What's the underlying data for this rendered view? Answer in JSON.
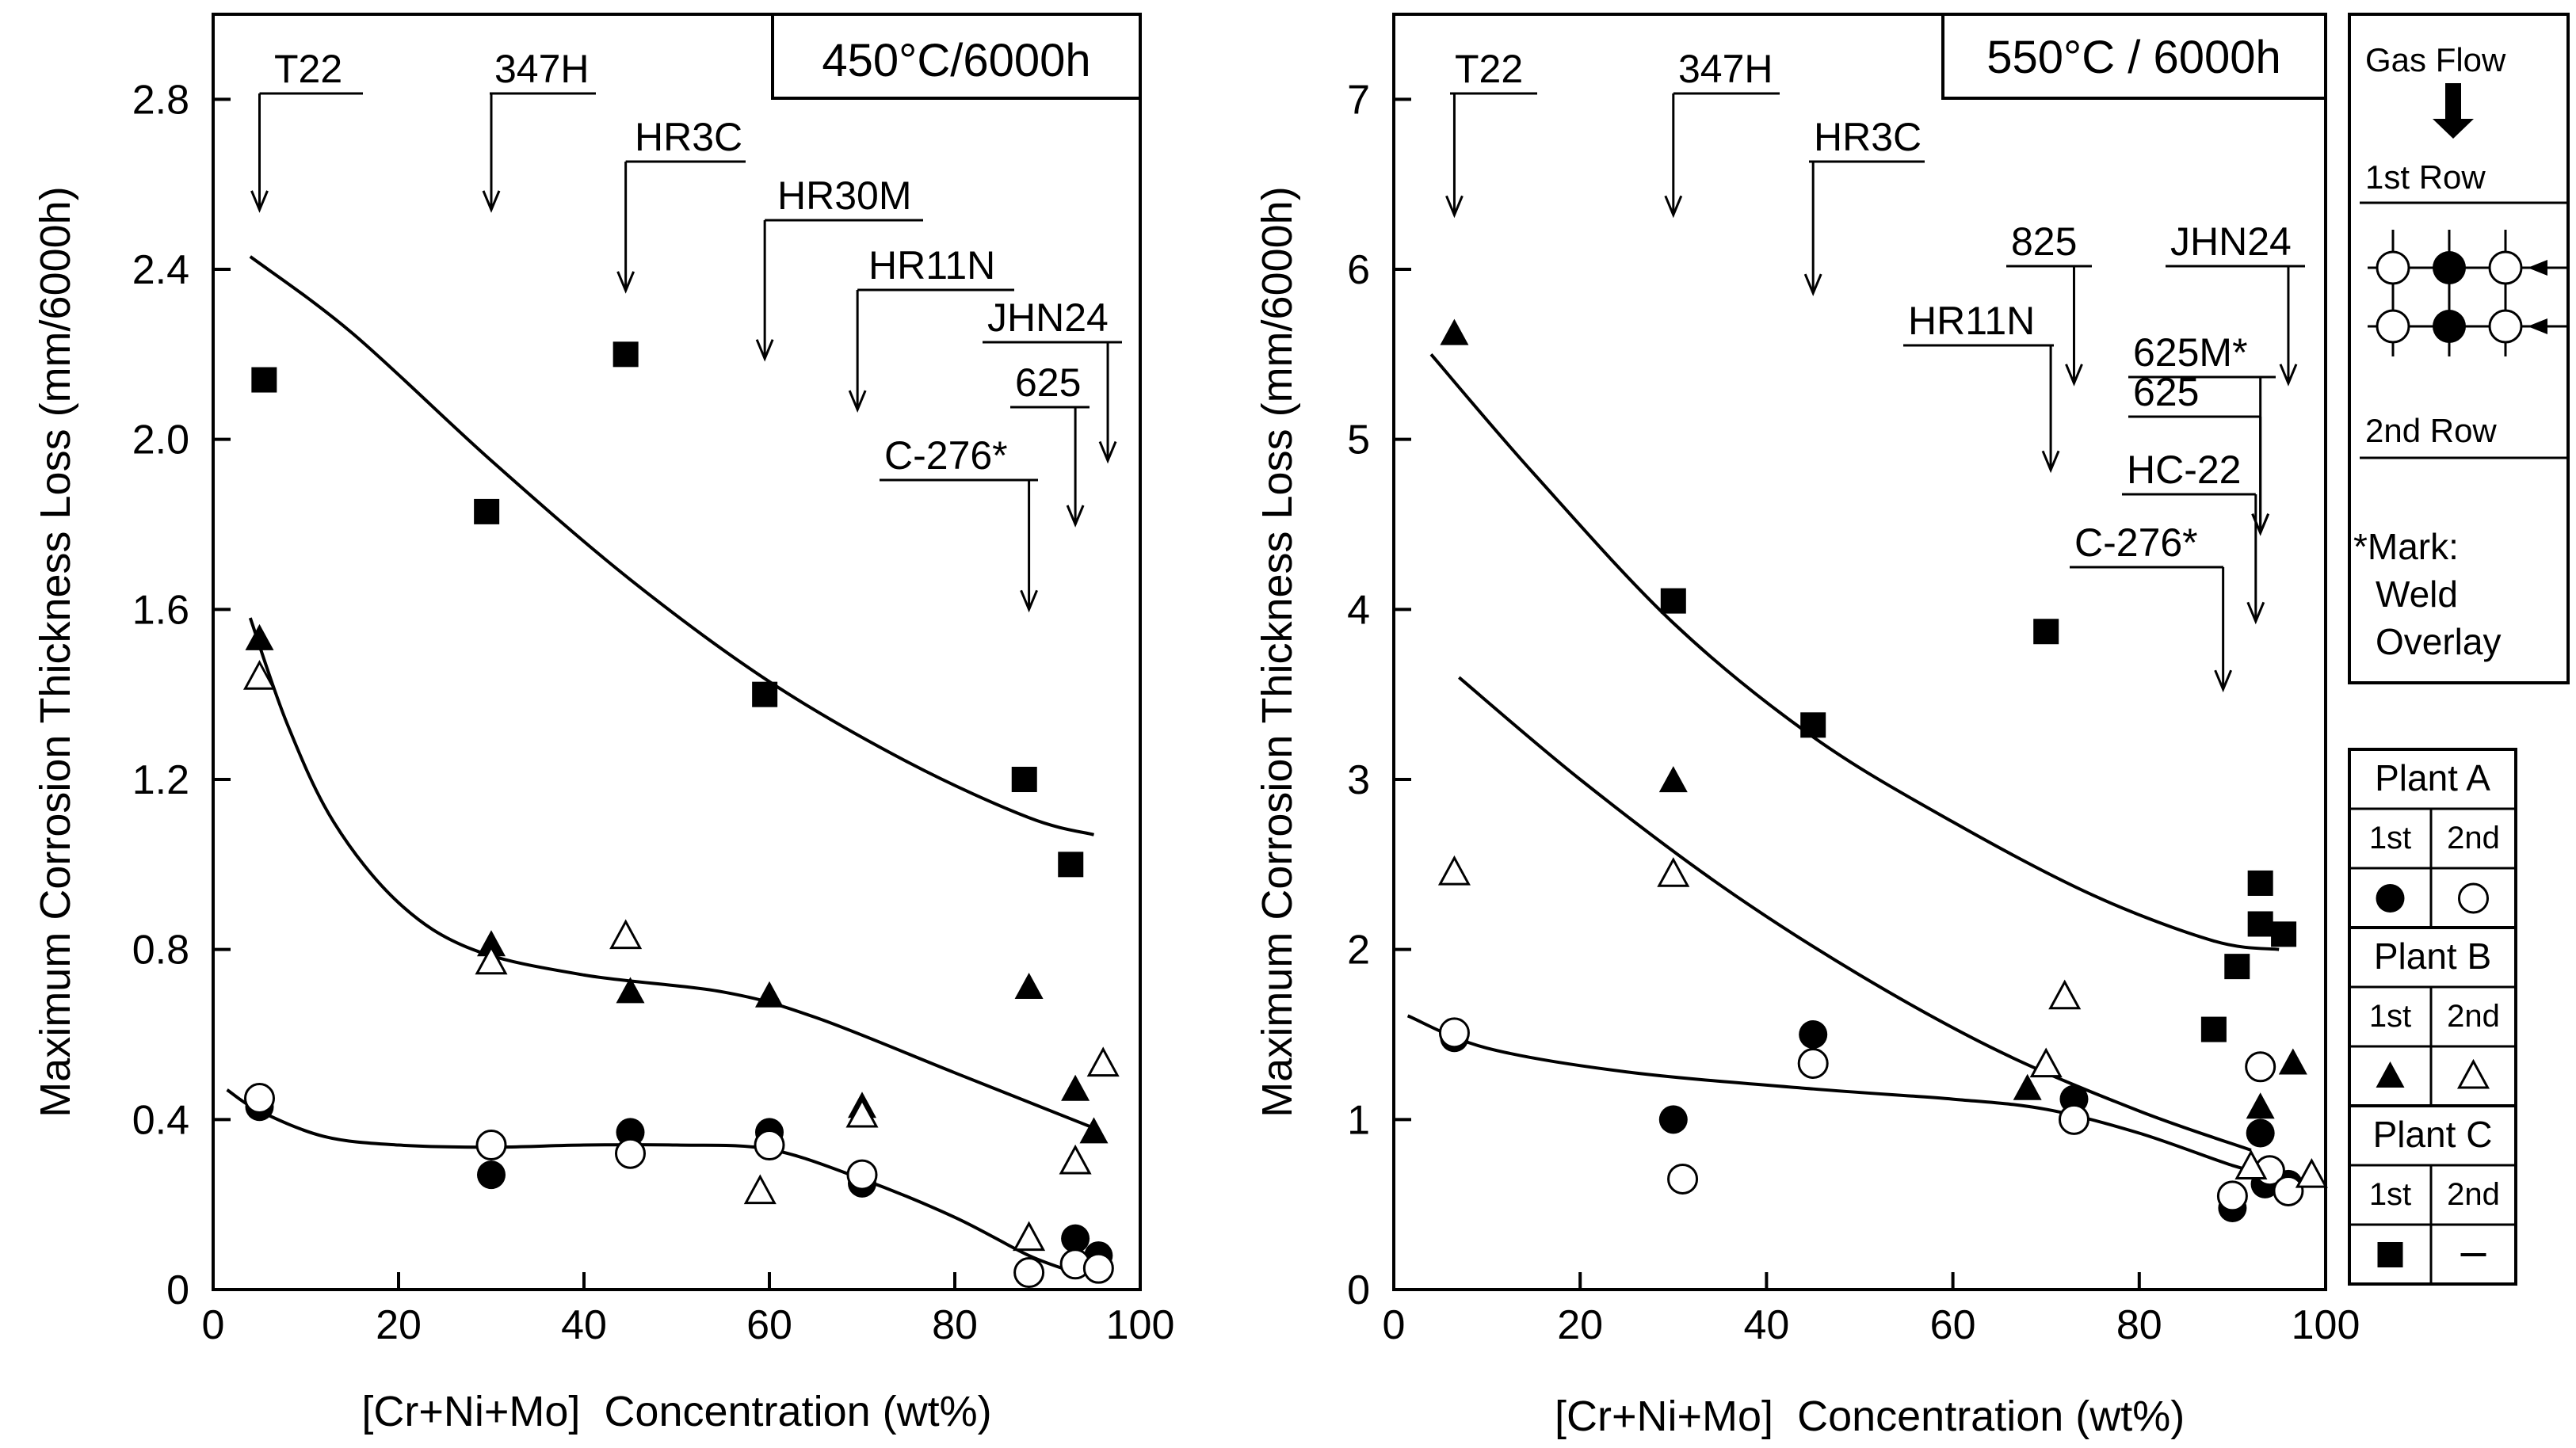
{
  "chart_data": [
    {
      "type": "scatter",
      "title": "450°C/6000h",
      "xlabel": "[Cr+Ni+Mo]  Concentration (wt%)",
      "ylabel": "Maximum Corrosion Thickness Loss (mm/6000h)",
      "xlim": [
        0,
        100
      ],
      "ylim": [
        0,
        3.0
      ],
      "xticks": [
        "0",
        "20",
        "40",
        "60",
        "80",
        "100"
      ],
      "yticks": [
        "0",
        "0.4",
        "0.8",
        "1.2",
        "1.6",
        "2.0",
        "2.4",
        "2.8"
      ],
      "series": [
        {
          "name": "Plant A 1st",
          "marker": "filled-circle",
          "points": [
            [
              5,
              0.43
            ],
            [
              30,
              0.27
            ],
            [
              45,
              0.37
            ],
            [
              60,
              0.37
            ],
            [
              70,
              0.25
            ],
            [
              88,
              0.04
            ],
            [
              93,
              0.12
            ],
            [
              95.5,
              0.08
            ]
          ]
        },
        {
          "name": "Plant A 2nd",
          "marker": "open-circle",
          "points": [
            [
              5,
              0.45
            ],
            [
              30,
              0.34
            ],
            [
              45,
              0.32
            ],
            [
              60,
              0.34
            ],
            [
              70,
              0.27
            ],
            [
              88,
              0.04
            ],
            [
              93,
              0.06
            ],
            [
              95.5,
              0.05
            ]
          ]
        },
        {
          "name": "Plant B 1st",
          "marker": "filled-triangle",
          "points": [
            [
              5,
              1.53
            ],
            [
              30,
              0.81
            ],
            [
              45,
              0.7
            ],
            [
              60,
              0.69
            ],
            [
              70,
              0.43
            ],
            [
              88,
              0.71
            ],
            [
              93,
              0.47
            ],
            [
              95,
              0.37
            ]
          ]
        },
        {
          "name": "Plant B 2nd",
          "marker": "open-triangle",
          "points": [
            [
              5,
              1.44
            ],
            [
              30,
              0.77
            ],
            [
              44.5,
              0.83
            ],
            [
              59,
              0.23
            ],
            [
              70,
              0.41
            ],
            [
              88,
              0.12
            ],
            [
              93,
              0.3
            ],
            [
              96,
              0.53
            ]
          ]
        },
        {
          "name": "Plant C 1st",
          "marker": "filled-square",
          "points": [
            [
              5.5,
              2.14
            ],
            [
              29.5,
              1.83
            ],
            [
              44.5,
              2.2
            ],
            [
              59.5,
              1.4
            ],
            [
              87.5,
              1.2
            ],
            [
              92.5,
              1.0
            ]
          ]
        }
      ],
      "trend_curves": [
        {
          "name": "Plant C trend",
          "points": [
            [
              4,
              2.43
            ],
            [
              15,
              2.25
            ],
            [
              30,
              1.95
            ],
            [
              45,
              1.67
            ],
            [
              60,
              1.43
            ],
            [
              75,
              1.24
            ],
            [
              88,
              1.11
            ],
            [
              95,
              1.07
            ]
          ]
        },
        {
          "name": "Plant B trend",
          "points": [
            [
              4,
              1.58
            ],
            [
              8,
              1.33
            ],
            [
              13,
              1.1
            ],
            [
              20,
              0.91
            ],
            [
              28,
              0.8
            ],
            [
              40,
              0.74
            ],
            [
              55,
              0.7
            ],
            [
              65,
              0.64
            ],
            [
              80,
              0.51
            ],
            [
              95,
              0.38
            ]
          ]
        },
        {
          "name": "Plant A trend",
          "points": [
            [
              1.5,
              0.47
            ],
            [
              5,
              0.42
            ],
            [
              12,
              0.36
            ],
            [
              20,
              0.34
            ],
            [
              30,
              0.335
            ],
            [
              40,
              0.34
            ],
            [
              50,
              0.34
            ],
            [
              60,
              0.33
            ],
            [
              70,
              0.26
            ],
            [
              80,
              0.17
            ],
            [
              88,
              0.08
            ],
            [
              93,
              0.04
            ]
          ]
        }
      ],
      "annotations": [
        {
          "label": "T22",
          "x": 5,
          "y_end": 2.54
        },
        {
          "label": "347H",
          "x": 30,
          "y_end": 2.54
        },
        {
          "label": "HR3C",
          "x": 44.5,
          "y_end": 2.35
        },
        {
          "label": "HR30M",
          "x": 59.5,
          "y_end": 2.19
        },
        {
          "label": "HR11N",
          "x": 69.5,
          "y_end": 2.07
        },
        {
          "label": "JHN24",
          "x": 96.5,
          "y_end": 1.95
        },
        {
          "label": "625",
          "x": 93,
          "y_end": 1.8
        },
        {
          "label": "C-276*",
          "x": 88,
          "y_end": 1.6
        }
      ]
    },
    {
      "type": "scatter",
      "title": "550°C / 6000h",
      "xlabel": "[Cr+Ni+Mo]  Concentration (wt%)",
      "ylabel": "Maximum Corrosion Thickness Loss (mm/6000h)",
      "xlim": [
        0,
        100
      ],
      "ylim": [
        0,
        7.5
      ],
      "xticks": [
        "0",
        "20",
        "40",
        "60",
        "80",
        "100"
      ],
      "yticks": [
        "0",
        "1",
        "2",
        "3",
        "4",
        "5",
        "6",
        "7"
      ],
      "series": [
        {
          "name": "Plant A 1st",
          "marker": "filled-circle",
          "points": [
            [
              6.5,
              1.48
            ],
            [
              30,
              1.0
            ],
            [
              45,
              1.5
            ],
            [
              73,
              1.12
            ],
            [
              90,
              0.48
            ],
            [
              93,
              0.92
            ],
            [
              93.5,
              0.62
            ],
            [
              96,
              0.62
            ]
          ]
        },
        {
          "name": "Plant A 2nd",
          "marker": "open-circle",
          "points": [
            [
              6.5,
              1.51
            ],
            [
              31,
              0.65
            ],
            [
              45,
              1.33
            ],
            [
              73,
              1.0
            ],
            [
              90,
              0.55
            ],
            [
              93,
              1.31
            ],
            [
              94,
              0.7
            ],
            [
              96,
              0.58
            ]
          ]
        },
        {
          "name": "Plant B 1st",
          "marker": "filled-triangle",
          "points": [
            [
              6.5,
              5.62
            ],
            [
              30,
              2.99
            ],
            [
              68,
              1.18
            ],
            [
              93,
              1.07
            ],
            [
              96.5,
              1.33
            ]
          ]
        },
        {
          "name": "Plant B 2nd",
          "marker": "open-triangle",
          "points": [
            [
              6.5,
              2.45
            ],
            [
              30,
              2.44
            ],
            [
              72,
              1.72
            ],
            [
              70,
              1.32
            ],
            [
              92,
              0.72
            ],
            [
              98.5,
              0.67
            ]
          ]
        },
        {
          "name": "Plant C 1st",
          "marker": "filled-square",
          "points": [
            [
              30,
              4.05
            ],
            [
              45,
              3.32
            ],
            [
              70,
              3.87
            ],
            [
              88,
              1.53
            ],
            [
              90.5,
              1.9
            ],
            [
              93,
              2.39
            ],
            [
              93,
              2.15
            ],
            [
              95.5,
              2.09
            ]
          ]
        }
      ],
      "trend_curves": [
        {
          "name": "Plant C trend",
          "points": [
            [
              4,
              5.5
            ],
            [
              15,
              4.8
            ],
            [
              30,
              3.92
            ],
            [
              45,
              3.25
            ],
            [
              60,
              2.75
            ],
            [
              75,
              2.32
            ],
            [
              88,
              2.05
            ],
            [
              95,
              2.0
            ]
          ]
        },
        {
          "name": "Plant B trend",
          "points": [
            [
              7,
              3.6
            ],
            [
              20,
              3.0
            ],
            [
              35,
              2.38
            ],
            [
              50,
              1.85
            ],
            [
              65,
              1.4
            ],
            [
              80,
              1.05
            ],
            [
              92,
              0.82
            ]
          ]
        },
        {
          "name": "Plant A trend",
          "points": [
            [
              1.5,
              1.61
            ],
            [
              10,
              1.42
            ],
            [
              25,
              1.28
            ],
            [
              45,
              1.18
            ],
            [
              60,
              1.12
            ],
            [
              70,
              1.06
            ],
            [
              80,
              0.92
            ],
            [
              90,
              0.73
            ],
            [
              94,
              0.68
            ]
          ]
        }
      ],
      "annotations": [
        {
          "label": "T22",
          "x": 6.5,
          "y_end": 6.32
        },
        {
          "label": "347H",
          "x": 30,
          "y_end": 6.32
        },
        {
          "label": "HR3C",
          "x": 45,
          "y_end": 5.86
        },
        {
          "label": "825",
          "x": 73,
          "y_end": 5.33
        },
        {
          "label": "JHN24",
          "x": 96,
          "y_end": 5.33
        },
        {
          "label": "HR11N",
          "x": 70.5,
          "y_end": 4.82
        },
        {
          "label": "625M*",
          "x": 93,
          "y_end": 4.45
        },
        {
          "label": "625",
          "x": 93,
          "y_end": 4.45
        },
        {
          "label": "HC-22",
          "x": 92.5,
          "y_end": 3.93
        },
        {
          "label": "C-276*",
          "x": 89,
          "y_end": 3.53
        }
      ]
    }
  ],
  "diagram": {
    "gas_flow": "Gas Flow",
    "row1": "1st Row",
    "row2": "2nd Row"
  },
  "note": {
    "line1": "*Mark:",
    "line2": "Weld",
    "line3": "Overlay"
  },
  "legend": {
    "groups": [
      {
        "title": "Plant A",
        "col1": "1st",
        "col2": "2nd",
        "sym1": "filled-circle",
        "sym2": "open-circle"
      },
      {
        "title": "Plant B",
        "col1": "1st",
        "col2": "2nd",
        "sym1": "filled-triangle",
        "sym2": "open-triangle"
      },
      {
        "title": "Plant C",
        "col1": "1st",
        "col2": "2nd",
        "sym1": "filled-square",
        "sym2": "dash"
      }
    ]
  }
}
